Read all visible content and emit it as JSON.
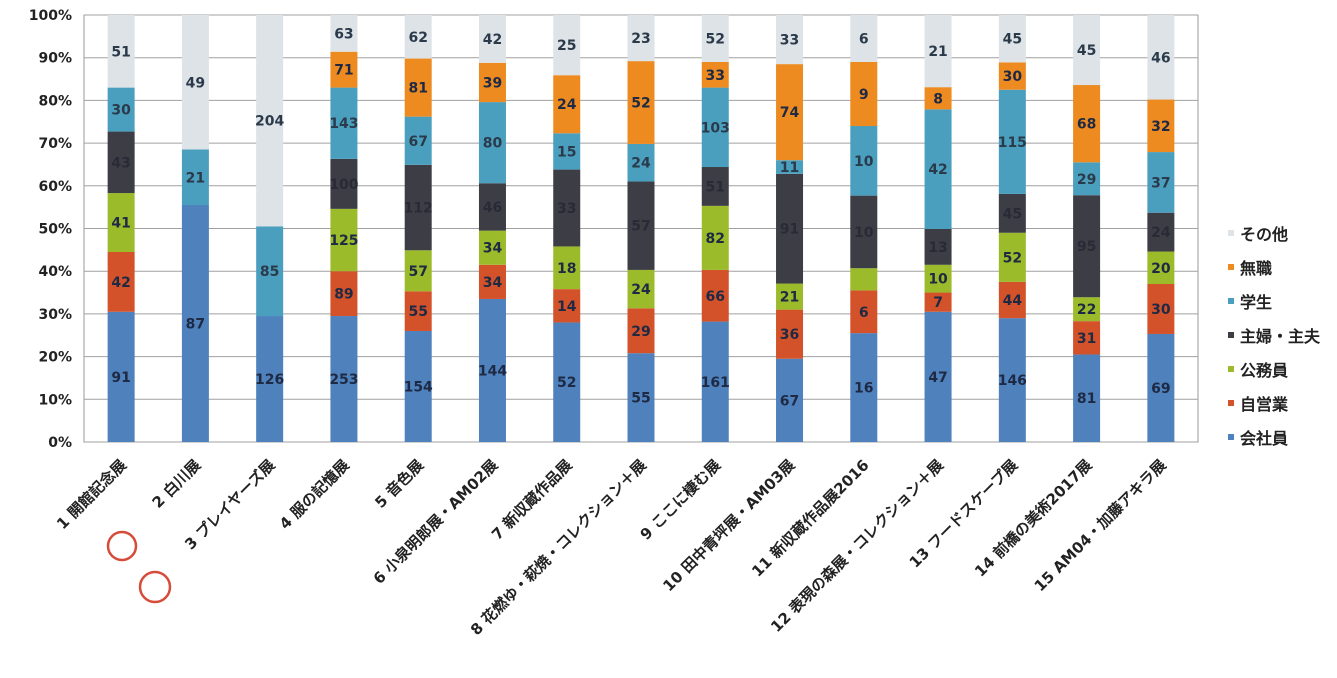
{
  "chart_data": {
    "type": "bar",
    "stacked": "percent",
    "title": "",
    "xlabel": "",
    "ylabel": "",
    "ylim": [
      0,
      100
    ],
    "yticks": [
      "0%",
      "10%",
      "20%",
      "30%",
      "40%",
      "50%",
      "60%",
      "70%",
      "80%",
      "90%",
      "100%"
    ],
    "grid": true,
    "legend_position": "right",
    "categories": [
      "1 開館記念展",
      "2 白川展",
      "3 プレイヤーズ展",
      "4 服の記憶展",
      "5 音色展",
      "6 小泉明郎展・AM02展",
      "7 新収蔵作品展",
      "8 花燃ゆ・萩焼・コレクション＋展",
      "9 ここに棲む展",
      "10 田中青坪展・AM03展",
      "11 新収蔵作品展2016",
      "12 表現の森展・コレクション＋展",
      "13 フードスケープ展",
      "14 前橋の美術2017展",
      "15 AM04・加藤アキラ展"
    ],
    "series": [
      {
        "name": "会社員",
        "color": "#4f81bd",
        "values": [
          91,
          87,
          126,
          253,
          154,
          144,
          52,
          55,
          161,
          67,
          16,
          47,
          146,
          81,
          69
        ],
        "percent": [
          30.5,
          55.5,
          29.5,
          29.5,
          26,
          33.5,
          28,
          20.8,
          28.2,
          19.5,
          25.5,
          30.5,
          29,
          20.5,
          25.3
        ]
      },
      {
        "name": "自営業",
        "color": "#d4522a",
        "values": [
          42,
          null,
          null,
          89,
          55,
          34,
          14,
          29,
          66,
          36,
          6,
          7,
          44,
          31,
          30
        ],
        "percent": [
          14,
          0,
          0,
          10.5,
          9.3,
          8,
          7.8,
          10.5,
          12.1,
          11.5,
          10,
          4.5,
          8.5,
          7.8,
          11.7
        ]
      },
      {
        "name": "公務員",
        "color": "#9bbb2a",
        "values": [
          41,
          null,
          null,
          125,
          57,
          34,
          18,
          24,
          82,
          21,
          null,
          10,
          52,
          22,
          20
        ],
        "percent": [
          13.8,
          0,
          0,
          14.6,
          9.6,
          8,
          10,
          9,
          15,
          6.1,
          5.2,
          6.5,
          11.5,
          5.6,
          7.6
        ]
      },
      {
        "name": "主婦・主夫",
        "color": "#3d3d45",
        "values": [
          43,
          null,
          null,
          100,
          112,
          46,
          33,
          57,
          51,
          91,
          10,
          13,
          45,
          95,
          24
        ],
        "percent": [
          14.4,
          0,
          0,
          11.7,
          20,
          11.1,
          18,
          20.7,
          9.1,
          25.7,
          17,
          8.4,
          9.1,
          23.9,
          9.1
        ]
      },
      {
        "name": "学生",
        "color": "#4a9fbf",
        "values": [
          30,
          21,
          85,
          143,
          67,
          80,
          15,
          24,
          103,
          11,
          10,
          42,
          115,
          29,
          37
        ],
        "percent": [
          10.3,
          13,
          21,
          16.7,
          11.3,
          19,
          8.5,
          8.8,
          18.6,
          3.2,
          16.3,
          28,
          24.4,
          7.7,
          14.2
        ]
      },
      {
        "name": "無職",
        "color": "#ed8b21",
        "values": [
          null,
          null,
          null,
          71,
          81,
          39,
          24,
          52,
          33,
          74,
          9,
          8,
          30,
          68,
          32
        ],
        "percent": [
          0,
          0,
          0,
          8.4,
          13.6,
          9.2,
          13.6,
          19.4,
          6,
          22.5,
          15,
          5.2,
          6.4,
          18.1,
          12.3
        ]
      },
      {
        "name": "その他",
        "color": "#dde3e6",
        "values": [
          51,
          49,
          204,
          63,
          62,
          42,
          25,
          23,
          52,
          33,
          6,
          21,
          45,
          45,
          46
        ],
        "percent": [
          17,
          31.5,
          49.5,
          8.6,
          10.2,
          11.2,
          14.1,
          10.8,
          11,
          11.5,
          11,
          16.9,
          11.1,
          16.4,
          19.8
        ]
      }
    ]
  },
  "legend_order": [
    "その他",
    "無職",
    "学生",
    "主婦・主夫",
    "公務員",
    "自営業",
    "会社員"
  ]
}
